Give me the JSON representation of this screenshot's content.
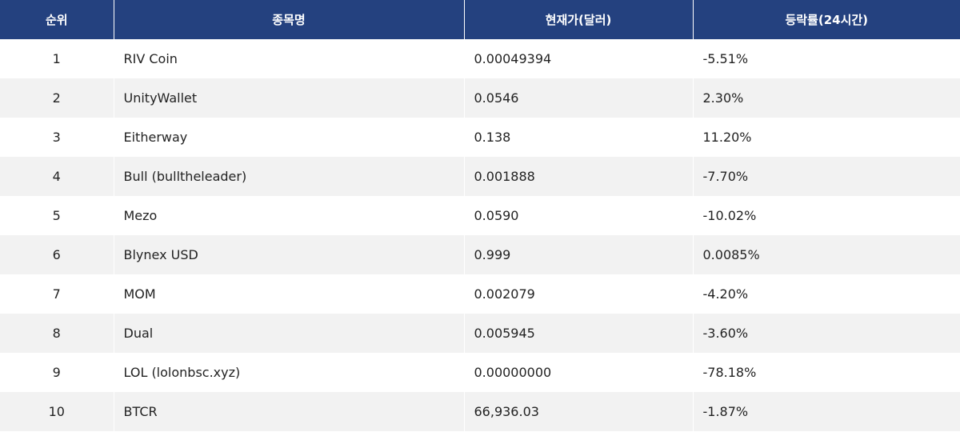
{
  "table": {
    "headers": {
      "rank": "순위",
      "name": "종목명",
      "price": "현재가(달러)",
      "change": "등락률(24시간)"
    },
    "rows": [
      {
        "rank": "1",
        "name": "RIV Coin",
        "price": "0.00049394",
        "change": "-5.51%"
      },
      {
        "rank": "2",
        "name": "UnityWallet",
        "price": "0.0546",
        "change": "2.30%"
      },
      {
        "rank": "3",
        "name": "Eitherway",
        "price": "0.138",
        "change": "11.20%"
      },
      {
        "rank": "4",
        "name": "Bull (bulltheleader)",
        "price": "0.001888",
        "change": "-7.70%"
      },
      {
        "rank": "5",
        "name": "Mezo",
        "price": "0.0590",
        "change": "-10.02%"
      },
      {
        "rank": "6",
        "name": "Blynex USD",
        "price": "0.999",
        "change": "0.0085%"
      },
      {
        "rank": "7",
        "name": "MOM",
        "price": "0.002079",
        "change": "-4.20%"
      },
      {
        "rank": "8",
        "name": "Dual",
        "price": "0.005945",
        "change": "-3.60%"
      },
      {
        "rank": "9",
        "name": "LOL (lolonbsc.xyz)",
        "price": "0.00000000",
        "change": "-78.18%"
      },
      {
        "rank": "10",
        "name": "BTCR",
        "price": "66,936.03",
        "change": "-1.87%"
      }
    ]
  },
  "colors": {
    "header_background": "#24417f",
    "header_text": "#ffffff",
    "row_odd": "#ffffff",
    "row_even": "#f2f2f2"
  }
}
